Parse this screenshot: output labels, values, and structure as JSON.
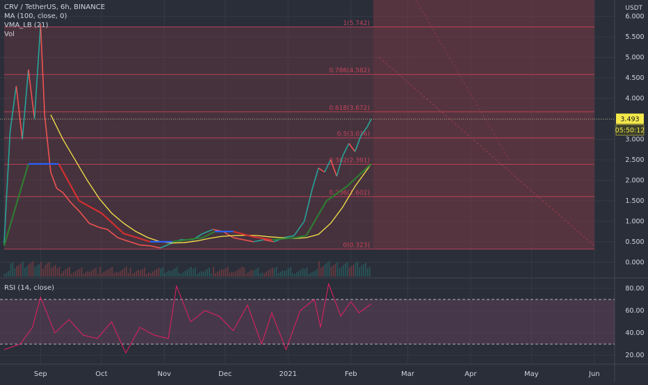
{
  "header": {
    "symbol_line": "CRV / TetherUS, 6h, BINANCE",
    "indicators": [
      "MA (100, close, 0)",
      "VMA_LB (21)",
      "Vol"
    ],
    "rsi_label": "RSI (14, close)",
    "currency": "USDT"
  },
  "price_badges": {
    "last_price": "3.493",
    "countdown": "05:50:12"
  },
  "colors": {
    "background": "#2a2e39",
    "grid": "#363a45",
    "candle_up": "#26a69a",
    "candle_down": "#ef5350",
    "ma_line": "#f7e548",
    "vma_up": "#2e7d32",
    "vma_down": "#d32f2f",
    "vma_flat": "#2962ff",
    "fib": "#c7435a",
    "fib_zone": "#7a3a46",
    "rsi_line": "#e91e63",
    "rsi_band": "#7b4a6a",
    "price_badge": "#f5e94a"
  },
  "chart_data": [
    {
      "type": "line",
      "name": "price",
      "title": "CRV / TetherUS, 6h, BINANCE",
      "x_ticks": [
        "Sep",
        "Oct",
        "Nov",
        "Dec",
        "2021",
        "Feb",
        "Mar",
        "Apr",
        "May",
        "Jun"
      ],
      "y_ticks": [
        "0.000",
        "0.500",
        "1.000",
        "1.500",
        "2.000",
        "2.500",
        "3.000",
        "3.500",
        "4.000",
        "4.500",
        "5.000",
        "5.500",
        "6.000"
      ],
      "ylim": [
        -0.35,
        6.4
      ],
      "grid": true,
      "series": [
        {
          "x": [
            "2020-08-14",
            "2020-08-17",
            "2020-08-20",
            "2020-08-23",
            "2020-08-26",
            "2020-08-29",
            "2020-09-01",
            "2020-09-03",
            "2020-09-06",
            "2020-09-09",
            "2020-09-12",
            "2020-09-16",
            "2020-09-20",
            "2020-09-25",
            "2020-09-30",
            "2020-10-04",
            "2020-10-09",
            "2020-10-15",
            "2020-10-20",
            "2020-10-25",
            "2020-10-30",
            "2020-11-04",
            "2020-11-09",
            "2020-11-15",
            "2020-11-20",
            "2020-11-25",
            "2020-11-30",
            "2020-12-05",
            "2020-12-10",
            "2020-12-15",
            "2020-12-20",
            "2020-12-25",
            "2020-12-30",
            "2021-01-04",
            "2021-01-09",
            "2021-01-13",
            "2021-01-16",
            "2021-01-19",
            "2021-01-22",
            "2021-01-25",
            "2021-01-28",
            "2021-01-31",
            "2021-02-03",
            "2021-02-06",
            "2021-02-09",
            "2021-02-11"
          ],
          "y": [
            0.45,
            3.2,
            4.3,
            3.0,
            4.7,
            3.5,
            5.8,
            3.6,
            2.2,
            1.8,
            1.7,
            1.45,
            1.25,
            0.95,
            0.85,
            0.8,
            0.6,
            0.5,
            0.42,
            0.4,
            0.35,
            0.45,
            0.55,
            0.55,
            0.7,
            0.8,
            0.75,
            0.6,
            0.55,
            0.5,
            0.55,
            0.5,
            0.6,
            0.65,
            1.0,
            1.8,
            2.3,
            2.2,
            2.5,
            2.1,
            2.6,
            2.9,
            2.7,
            3.1,
            3.3,
            3.493
          ]
        }
      ]
    },
    {
      "type": "line",
      "name": "MA (100, close, 0)",
      "x": [
        "2020-09-06",
        "2020-09-12",
        "2020-09-18",
        "2020-09-24",
        "2020-09-30",
        "2020-10-06",
        "2020-10-12",
        "2020-10-18",
        "2020-10-24",
        "2020-10-30",
        "2020-11-05",
        "2020-11-11",
        "2020-11-17",
        "2020-11-23",
        "2020-11-29",
        "2020-12-05",
        "2020-12-11",
        "2020-12-17",
        "2020-12-23",
        "2020-12-29",
        "2021-01-04",
        "2021-01-10",
        "2021-01-16",
        "2021-01-22",
        "2021-01-28",
        "2021-02-03",
        "2021-02-11"
      ],
      "y": [
        3.6,
        3.0,
        2.5,
        2.0,
        1.55,
        1.2,
        0.95,
        0.75,
        0.6,
        0.5,
        0.47,
        0.48,
        0.52,
        0.58,
        0.63,
        0.65,
        0.66,
        0.65,
        0.62,
        0.6,
        0.58,
        0.6,
        0.68,
        0.95,
        1.35,
        1.85,
        2.4
      ]
    },
    {
      "type": "line",
      "name": "VMA_LB (21)",
      "x": [
        "2020-08-14",
        "2020-08-26",
        "2020-09-01",
        "2020-09-09",
        "2020-09-10",
        "2020-09-20",
        "2020-10-01",
        "2020-10-12",
        "2020-10-25",
        "2020-11-05",
        "2020-11-20",
        "2020-11-26",
        "2020-12-05",
        "2020-12-15",
        "2020-12-24",
        "2021-01-05",
        "2021-01-10",
        "2021-01-20",
        "2021-01-30",
        "2021-02-11"
      ],
      "y": [
        0.4,
        2.4,
        2.4,
        2.4,
        2.4,
        1.5,
        1.2,
        0.7,
        0.5,
        0.5,
        0.6,
        0.75,
        0.75,
        0.62,
        0.55,
        0.6,
        0.65,
        1.5,
        1.85,
        2.4
      ]
    },
    {
      "type": "line",
      "name": "Fibonacci levels",
      "levels": [
        {
          "label": "1(5.742)",
          "value": 5.742
        },
        {
          "label": "0.786(4.582)",
          "value": 4.582
        },
        {
          "label": "0.618(3.672)",
          "value": 3.672
        },
        {
          "label": "0.5(3.036)",
          "value": 3.036
        },
        {
          "label": "0.382(2.391)",
          "value": 2.391
        },
        {
          "label": "0.236(1.602)",
          "value": 1.602
        },
        {
          "label": "0(0.323)",
          "value": 0.323
        }
      ],
      "x_range": [
        "2020-08-14",
        "2021-06-01"
      ]
    },
    {
      "type": "line",
      "name": "RSI (14, close)",
      "x_ticks": [
        "Sep",
        "Oct",
        "Nov",
        "Dec",
        "2021",
        "Feb",
        "Mar",
        "Apr",
        "May",
        "Jun"
      ],
      "y_ticks": [
        "20.00",
        "40.00",
        "60.00",
        "80.00"
      ],
      "ylim": [
        12,
        88
      ],
      "bands": [
        30,
        70
      ],
      "series": [
        {
          "x": [
            "2020-08-14",
            "2020-08-22",
            "2020-08-28",
            "2020-09-01",
            "2020-09-08",
            "2020-09-15",
            "2020-09-22",
            "2020-09-29",
            "2020-10-06",
            "2020-10-13",
            "2020-10-20",
            "2020-10-27",
            "2020-11-03",
            "2020-11-07",
            "2020-11-14",
            "2020-11-21",
            "2020-11-28",
            "2020-12-05",
            "2020-12-12",
            "2020-12-19",
            "2020-12-24",
            "2020-12-31",
            "2021-01-07",
            "2021-01-14",
            "2021-01-17",
            "2021-01-21",
            "2021-01-27",
            "2021-02-01",
            "2021-02-05",
            "2021-02-11"
          ],
          "y": [
            25,
            30,
            45,
            72,
            40,
            52,
            38,
            35,
            50,
            22,
            45,
            38,
            35,
            82,
            50,
            60,
            55,
            42,
            65,
            30,
            58,
            25,
            60,
            70,
            45,
            84,
            55,
            68,
            58,
            66
          ]
        }
      ]
    }
  ]
}
